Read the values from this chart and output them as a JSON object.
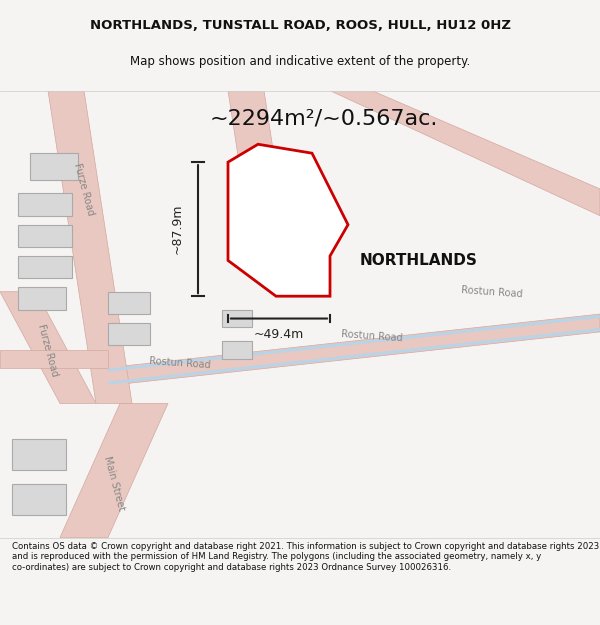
{
  "title_line1": "NORTHLANDS, TUNSTALL ROAD, ROOS, HULL, HU12 0HZ",
  "title_line2": "Map shows position and indicative extent of the property.",
  "area_text": "~2294m²/~0.567ac.",
  "property_label": "NORTHLANDS",
  "dim_height": "~87.9m",
  "dim_width": "~49.4m",
  "footer_text": "Contains OS data © Crown copyright and database right 2021. This information is subject to Crown copyright and database rights 2023 and is reproduced with the permission of HM Land Registry. The polygons (including the associated geometry, namely x, y co-ordinates) are subject to Crown copyright and database rights 2023 Ordnance Survey 100026316.",
  "bg_color": "#f5f4f2",
  "map_bg": "#ffffff",
  "road_color_main": "#e8c8c0",
  "road_color_blue": "#b8d4e8",
  "road_color_outline": "#d4a8a0",
  "property_fill": "#ffffff",
  "property_edge": "#cc0000",
  "building_fill": "#d8d8d8",
  "building_edge": "#aaaaaa",
  "text_color": "#111111",
  "dim_color": "#222222",
  "street_text_color": "#888888",
  "footer_bg": "#ffffff"
}
